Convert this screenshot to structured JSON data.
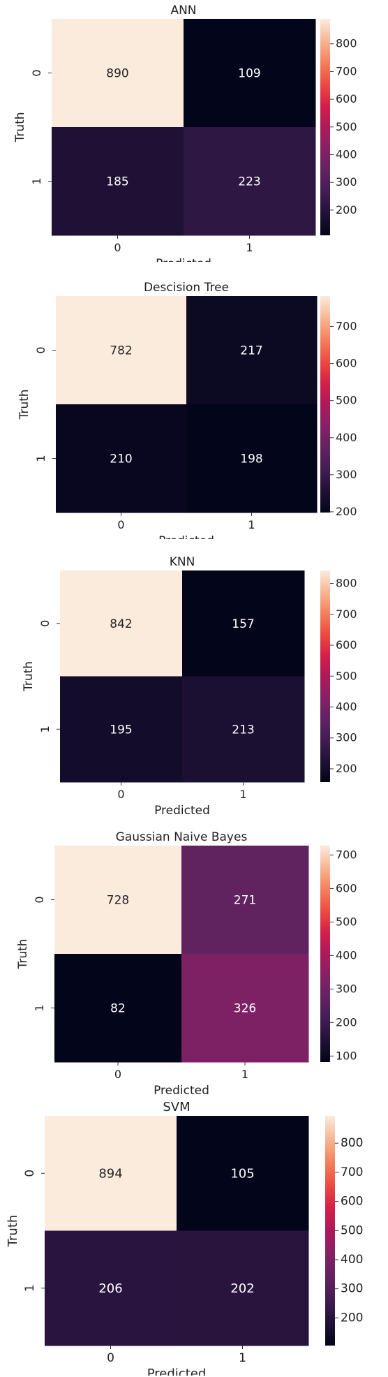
{
  "chart_data": [
    {
      "type": "heatmap",
      "title": "ANN",
      "xlabel": "Predicted",
      "ylabel": "Truth",
      "x_categories": [
        "0",
        "1"
      ],
      "y_categories": [
        "0",
        "1"
      ],
      "values": [
        [
          890,
          109
        ],
        [
          185,
          223
        ]
      ],
      "colorbar": {
        "min": 109,
        "max": 890,
        "ticks": [
          200,
          300,
          400,
          500,
          600,
          700,
          800
        ]
      },
      "colormap": "rocket",
      "grid": false,
      "legend": "colorbar-right"
    },
    {
      "type": "heatmap",
      "title": "Descision Tree",
      "xlabel": "Predicted",
      "ylabel": "Truth",
      "x_categories": [
        "0",
        "1"
      ],
      "y_categories": [
        "0",
        "1"
      ],
      "values": [
        [
          782,
          217
        ],
        [
          210,
          198
        ]
      ],
      "colorbar": {
        "min": 198,
        "max": 782,
        "ticks": [
          200,
          300,
          400,
          500,
          600,
          700
        ]
      },
      "colormap": "rocket",
      "grid": false,
      "legend": "colorbar-right"
    },
    {
      "type": "heatmap",
      "title": "KNN",
      "xlabel": "Predicted",
      "ylabel": "Truth",
      "x_categories": [
        "0",
        "1"
      ],
      "y_categories": [
        "0",
        "1"
      ],
      "values": [
        [
          842,
          157
        ],
        [
          195,
          213
        ]
      ],
      "colorbar": {
        "min": 157,
        "max": 842,
        "ticks": [
          200,
          300,
          400,
          500,
          600,
          700,
          800
        ]
      },
      "colormap": "rocket",
      "grid": false,
      "legend": "colorbar-right"
    },
    {
      "type": "heatmap",
      "title": "Gaussian Naive Bayes",
      "xlabel": "Predicted",
      "ylabel": "Truth",
      "x_categories": [
        "0",
        "1"
      ],
      "y_categories": [
        "0",
        "1"
      ],
      "values": [
        [
          728,
          271
        ],
        [
          82,
          326
        ]
      ],
      "colorbar": {
        "min": 82,
        "max": 728,
        "ticks": [
          100,
          200,
          300,
          400,
          500,
          600,
          700
        ]
      },
      "colormap": "rocket",
      "grid": false,
      "legend": "colorbar-right"
    },
    {
      "type": "heatmap",
      "title": "SVM",
      "xlabel": "Predicted",
      "ylabel": "Truth",
      "x_categories": [
        "0",
        "1"
      ],
      "y_categories": [
        "0",
        "1"
      ],
      "values": [
        [
          894,
          105
        ],
        [
          206,
          202
        ]
      ],
      "colorbar": {
        "min": 105,
        "max": 894,
        "ticks": [
          200,
          300,
          400,
          500,
          600,
          700,
          800
        ]
      },
      "colormap": "rocket",
      "grid": false,
      "legend": "colorbar-right"
    }
  ]
}
